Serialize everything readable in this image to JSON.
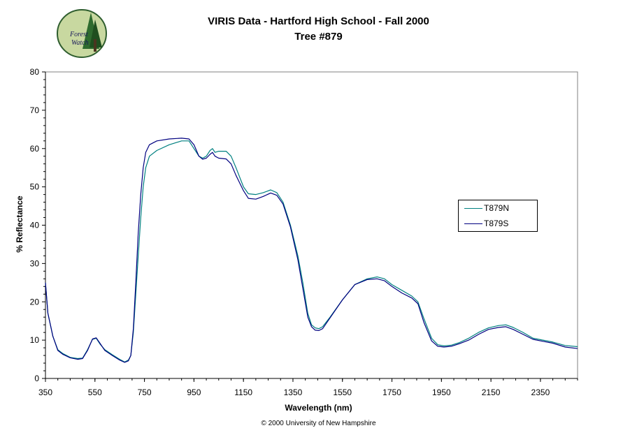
{
  "header": {
    "title": "VIRIS Data - Hartford High School - Fall 2000",
    "subtitle": "Tree #879",
    "logo_text_1": "Forest",
    "logo_text_2": "Watch"
  },
  "footer": {
    "copyright": "© 2000 University of New Hampshire"
  },
  "colors": {
    "T879N": "#008080",
    "T879S": "#000080"
  },
  "chart_data": {
    "type": "line",
    "title": "VIRIS Data - Hartford High School - Fall 2000",
    "subtitle": "Tree #879",
    "xlabel": "Wavelength (nm)",
    "ylabel": "% Reflectance",
    "xlim": [
      350,
      2500
    ],
    "ylim": [
      0,
      80
    ],
    "x_ticks": [
      350,
      550,
      750,
      950,
      1150,
      1350,
      1550,
      1750,
      1950,
      2150,
      2350
    ],
    "y_ticks": [
      0,
      10,
      20,
      30,
      40,
      50,
      60,
      70,
      80
    ],
    "grid": false,
    "legend_position": "right",
    "series": [
      {
        "name": "T879N",
        "color": "#008080",
        "points": [
          [
            350,
            25
          ],
          [
            360,
            17
          ],
          [
            370,
            14
          ],
          [
            380,
            11
          ],
          [
            400,
            7.5
          ],
          [
            420,
            6.5
          ],
          [
            450,
            5.5
          ],
          [
            480,
            5.2
          ],
          [
            500,
            5.3
          ],
          [
            520,
            7.5
          ],
          [
            540,
            10.2
          ],
          [
            555,
            10.5
          ],
          [
            570,
            9
          ],
          [
            590,
            7.5
          ],
          [
            620,
            6.2
          ],
          [
            650,
            5
          ],
          [
            670,
            4.3
          ],
          [
            685,
            4.8
          ],
          [
            695,
            6
          ],
          [
            705,
            12
          ],
          [
            715,
            22
          ],
          [
            725,
            32
          ],
          [
            735,
            42
          ],
          [
            745,
            50
          ],
          [
            755,
            55
          ],
          [
            770,
            58
          ],
          [
            800,
            59.5
          ],
          [
            850,
            61
          ],
          [
            900,
            62
          ],
          [
            930,
            62
          ],
          [
            950,
            60
          ],
          [
            970,
            58
          ],
          [
            985,
            57.5
          ],
          [
            1000,
            58
          ],
          [
            1015,
            59.5
          ],
          [
            1025,
            60
          ],
          [
            1035,
            59
          ],
          [
            1050,
            59.3
          ],
          [
            1080,
            59.3
          ],
          [
            1100,
            58
          ],
          [
            1120,
            55
          ],
          [
            1150,
            50
          ],
          [
            1170,
            48.2
          ],
          [
            1200,
            48
          ],
          [
            1230,
            48.5
          ],
          [
            1260,
            49.2
          ],
          [
            1285,
            48.5
          ],
          [
            1310,
            46
          ],
          [
            1340,
            40
          ],
          [
            1370,
            32
          ],
          [
            1390,
            25
          ],
          [
            1410,
            17
          ],
          [
            1425,
            14
          ],
          [
            1440,
            13.2
          ],
          [
            1455,
            13
          ],
          [
            1470,
            13.5
          ],
          [
            1500,
            16
          ],
          [
            1550,
            20.5
          ],
          [
            1600,
            24.5
          ],
          [
            1650,
            26
          ],
          [
            1690,
            26.5
          ],
          [
            1720,
            26
          ],
          [
            1750,
            24.5
          ],
          [
            1790,
            23
          ],
          [
            1830,
            21.5
          ],
          [
            1855,
            20
          ],
          [
            1880,
            15.5
          ],
          [
            1910,
            10.5
          ],
          [
            1935,
            8.8
          ],
          [
            1960,
            8.5
          ],
          [
            1990,
            8.7
          ],
          [
            2020,
            9.3
          ],
          [
            2060,
            10.5
          ],
          [
            2100,
            12
          ],
          [
            2140,
            13.2
          ],
          [
            2180,
            13.8
          ],
          [
            2210,
            14
          ],
          [
            2240,
            13.3
          ],
          [
            2280,
            12
          ],
          [
            2320,
            10.5
          ],
          [
            2360,
            10
          ],
          [
            2400,
            9.5
          ],
          [
            2450,
            8.6
          ],
          [
            2500,
            8.3
          ]
        ]
      },
      {
        "name": "T879S",
        "color": "#000080",
        "points": [
          [
            350,
            25
          ],
          [
            360,
            17
          ],
          [
            370,
            14
          ],
          [
            380,
            11
          ],
          [
            400,
            7.3
          ],
          [
            420,
            6.3
          ],
          [
            450,
            5.4
          ],
          [
            480,
            5
          ],
          [
            500,
            5.2
          ],
          [
            520,
            7.3
          ],
          [
            540,
            10.3
          ],
          [
            555,
            10.6
          ],
          [
            570,
            9.2
          ],
          [
            590,
            7.3
          ],
          [
            620,
            6
          ],
          [
            650,
            4.8
          ],
          [
            670,
            4.2
          ],
          [
            685,
            4.6
          ],
          [
            695,
            6
          ],
          [
            705,
            13
          ],
          [
            715,
            25
          ],
          [
            725,
            38
          ],
          [
            735,
            48
          ],
          [
            745,
            55
          ],
          [
            755,
            59
          ],
          [
            770,
            61
          ],
          [
            800,
            62
          ],
          [
            850,
            62.5
          ],
          [
            900,
            62.7
          ],
          [
            930,
            62.5
          ],
          [
            950,
            61
          ],
          [
            970,
            58
          ],
          [
            985,
            57.2
          ],
          [
            1000,
            57.5
          ],
          [
            1015,
            58.5
          ],
          [
            1025,
            59
          ],
          [
            1035,
            58
          ],
          [
            1050,
            57.5
          ],
          [
            1080,
            57.3
          ],
          [
            1100,
            56
          ],
          [
            1120,
            53
          ],
          [
            1150,
            49
          ],
          [
            1170,
            47
          ],
          [
            1200,
            46.8
          ],
          [
            1230,
            47.5
          ],
          [
            1260,
            48.4
          ],
          [
            1285,
            47.8
          ],
          [
            1310,
            45.5
          ],
          [
            1340,
            39.5
          ],
          [
            1370,
            31
          ],
          [
            1390,
            23.5
          ],
          [
            1410,
            16
          ],
          [
            1425,
            13.5
          ],
          [
            1440,
            12.6
          ],
          [
            1455,
            12.5
          ],
          [
            1470,
            13
          ],
          [
            1500,
            15.8
          ],
          [
            1550,
            20.5
          ],
          [
            1600,
            24.5
          ],
          [
            1650,
            25.8
          ],
          [
            1690,
            26
          ],
          [
            1720,
            25.5
          ],
          [
            1750,
            24
          ],
          [
            1790,
            22.3
          ],
          [
            1830,
            21
          ],
          [
            1855,
            19.5
          ],
          [
            1880,
            14.5
          ],
          [
            1910,
            9.8
          ],
          [
            1935,
            8.4
          ],
          [
            1960,
            8.2
          ],
          [
            1990,
            8.4
          ],
          [
            2020,
            9
          ],
          [
            2060,
            10
          ],
          [
            2100,
            11.5
          ],
          [
            2140,
            12.8
          ],
          [
            2180,
            13.3
          ],
          [
            2210,
            13.5
          ],
          [
            2240,
            12.8
          ],
          [
            2280,
            11.5
          ],
          [
            2320,
            10.2
          ],
          [
            2360,
            9.7
          ],
          [
            2400,
            9.2
          ],
          [
            2450,
            8.2
          ],
          [
            2500,
            7.8
          ]
        ]
      }
    ]
  }
}
